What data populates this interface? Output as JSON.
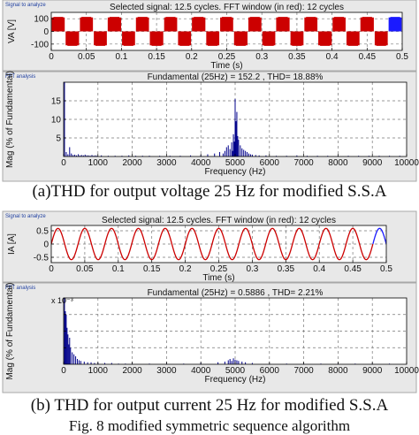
{
  "captions": {
    "a": "(a)THD for output voltage 25 Hz for modified S.S.A",
    "b": "(b) THD for output current 25 Hz for modified S.S.A",
    "figure": "Fig. 8 modified symmetric sequence algorithm"
  },
  "chart_data": [
    {
      "type": "line",
      "panel_tag": "Signal to analyze",
      "title": "Selected signal: 12.5 cycles. FFT window (in red): 12 cycles",
      "xlabel": "Time (s)",
      "ylabel": "VA  [V]",
      "xlim": [
        0,
        0.5
      ],
      "ylim": [
        -150,
        150
      ],
      "x_ticks": [
        0,
        0.05,
        0.1,
        0.15,
        0.2,
        0.25,
        0.3,
        0.35,
        0.4,
        0.45,
        0.5
      ],
      "x_tick_labels": [
        "0",
        "0.05",
        "0.1",
        "0.15",
        "0.2",
        "0.25",
        "0.3",
        "0.35",
        "0.4",
        "0.45",
        "0.5"
      ],
      "y_ticks": [
        -100,
        0,
        100
      ],
      "y_tick_labels": [
        "-100",
        "0",
        "100"
      ],
      "grid": true,
      "series": [
        {
          "color": "#cc0000",
          "kind": "pwm",
          "amplitude": 110,
          "fundamental_hz": 25,
          "x_range": [
            0,
            0.48
          ]
        },
        {
          "color": "#1a1aff",
          "kind": "pwm",
          "amplitude": 110,
          "fundamental_hz": 25,
          "x_range": [
            0.48,
            0.5
          ]
        }
      ]
    },
    {
      "type": "bar",
      "panel_tag": "FFT analysis",
      "title": "Fundamental (25Hz) = 152.2 , THD= 18.88%",
      "xlabel": "Frequency (Hz)",
      "ylabel": "Mag (% of Fundamental)",
      "xlim": [
        0,
        10000
      ],
      "ylim": [
        0,
        20
      ],
      "x_ticks": [
        0,
        1000,
        2000,
        3000,
        4000,
        5000,
        6000,
        7000,
        8000,
        9000,
        10000
      ],
      "x_tick_labels": [
        "0",
        "1000",
        "2000",
        "3000",
        "4000",
        "5000",
        "6000",
        "7000",
        "8000",
        "9000",
        "10000"
      ],
      "y_ticks": [
        5,
        10,
        15
      ],
      "y_tick_labels": [
        "5",
        "10",
        "15"
      ],
      "grid": true,
      "color": "#00008b",
      "freq": [
        25,
        75,
        125,
        175,
        225,
        275,
        325,
        375,
        425,
        475,
        525,
        575,
        625,
        675,
        725,
        775,
        825,
        875,
        925,
        975,
        1100,
        1300,
        1500,
        1700,
        1900,
        2100,
        2300,
        2500,
        2800,
        3100,
        3400,
        3700,
        4000,
        4200,
        4400,
        4550,
        4650,
        4700,
        4750,
        4800,
        4850,
        4900,
        4925,
        4950,
        4975,
        5000,
        5025,
        5050,
        5075,
        5100,
        5150,
        5200,
        5250,
        5300,
        5350,
        5400,
        5450,
        5500,
        5600,
        5700,
        5900,
        6200,
        6500,
        6800,
        7100,
        7400,
        7700,
        8000,
        8300,
        8600,
        8900,
        9200,
        9500,
        9800
      ],
      "mag": [
        100,
        1.2,
        0.6,
        2.5,
        0.8,
        0.4,
        0.5,
        0.3,
        0.6,
        0.3,
        0.4,
        0.3,
        0.5,
        0.3,
        0.3,
        0.2,
        0.4,
        0.2,
        0.3,
        0.2,
        0.3,
        0.2,
        0.2,
        0.2,
        0.3,
        0.2,
        0.2,
        0.2,
        0.2,
        0.2,
        0.2,
        0.3,
        0.4,
        0.6,
        0.8,
        1.2,
        0.8,
        1.5,
        2.5,
        3.0,
        2.0,
        3.8,
        1.5,
        6.0,
        4.0,
        15.5,
        9.5,
        12.0,
        5.5,
        4.5,
        3.0,
        2.2,
        1.8,
        1.5,
        1.2,
        0.8,
        0.6,
        0.5,
        0.4,
        0.3,
        0.3,
        0.2,
        0.2,
        0.3,
        0.2,
        0.2,
        0.2,
        0.2,
        0.2,
        0.2,
        0.2,
        0.2,
        0.2,
        0.2
      ]
    },
    {
      "type": "line",
      "panel_tag": "Signal to analyze",
      "title": "Selected signal: 12.5 cycles. FFT window (in red): 12 cycles",
      "xlabel": "Time (s)",
      "ylabel": "IA  [A]",
      "xlim": [
        0,
        0.5
      ],
      "ylim": [
        -0.7,
        0.7
      ],
      "x_ticks": [
        0,
        0.05,
        0.1,
        0.15,
        0.2,
        0.25,
        0.3,
        0.35,
        0.4,
        0.45,
        0.5
      ],
      "x_tick_labels": [
        "0",
        "0.05",
        "0.1",
        "0.15",
        "0.2",
        "0.25",
        "0.3",
        "0.35",
        "0.4",
        "0.45",
        "0.5"
      ],
      "y_ticks": [
        -0.5,
        0,
        0.5
      ],
      "y_tick_labels": [
        "-0.5",
        "0",
        "0.5"
      ],
      "grid": true,
      "series": [
        {
          "color": "#cc0000",
          "kind": "sine",
          "amplitude": 0.59,
          "fundamental_hz": 25,
          "x_range": [
            0,
            0.48
          ]
        },
        {
          "color": "#1a1aff",
          "kind": "sine",
          "amplitude": 0.59,
          "fundamental_hz": 25,
          "x_range": [
            0.48,
            0.5
          ]
        }
      ]
    },
    {
      "type": "bar",
      "panel_tag": "FFT analysis",
      "title": "Fundamental (25Hz) = 0.5886 , THD= 2.21%",
      "xlabel": "Frequency (Hz)",
      "ylabel": "Mag (% of Fundamental)",
      "xlim": [
        0,
        10000
      ],
      "ylim": [
        0,
        0.01
      ],
      "scale_label": "x 10⁻³",
      "x_ticks": [
        0,
        1000,
        2000,
        3000,
        4000,
        5000,
        6000,
        7000,
        8000,
        9000,
        10000
      ],
      "x_tick_labels": [
        "0",
        "1000",
        "2000",
        "3000",
        "4000",
        "5000",
        "6000",
        "7000",
        "8000",
        "9000",
        "10000"
      ],
      "y_ticks": [
        0.0025,
        0.005,
        0.0075
      ],
      "y_tick_labels": [
        "",
        "",
        ""
      ],
      "grid": true,
      "color": "#00008b",
      "freq": [
        25,
        50,
        75,
        100,
        125,
        150,
        175,
        200,
        250,
        300,
        350,
        400,
        450,
        500,
        600,
        700,
        800,
        900,
        1000,
        1200,
        1400,
        1600,
        1800,
        2000,
        2500,
        3000,
        3500,
        4000,
        4500,
        4700,
        4800,
        4850,
        4900,
        4950,
        5000,
        5050,
        5100,
        5200,
        5300,
        5500,
        6000,
        6500,
        7000,
        7500,
        8000,
        8500,
        9000,
        9500
      ],
      "mag": [
        0.0125,
        0.008,
        0.0075,
        0.0055,
        0.0045,
        0.003,
        0.004,
        0.0025,
        0.0018,
        0.0015,
        0.0012,
        0.0008,
        0.0006,
        0.0005,
        0.0004,
        0.0003,
        0.0003,
        0.0002,
        0.0002,
        0.0002,
        0.0002,
        0.0001,
        0.0001,
        0.0001,
        0.0001,
        0.0001,
        0.0001,
        0.0002,
        0.0003,
        0.0004,
        0.0006,
        0.0008,
        0.0005,
        0.0009,
        0.0007,
        0.0006,
        0.0005,
        0.0004,
        0.0003,
        0.0002,
        0.0001,
        0.0001,
        0.0001,
        0.0001,
        0.0001,
        0.0001,
        0.0001,
        0.0001
      ]
    }
  ]
}
